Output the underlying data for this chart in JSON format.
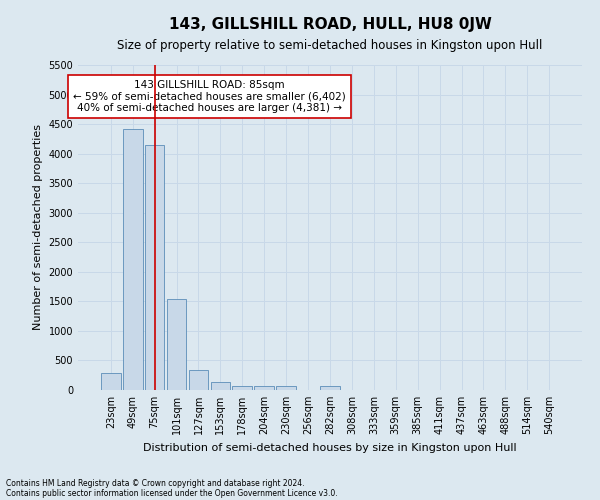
{
  "title": "143, GILLSHILL ROAD, HULL, HU8 0JW",
  "subtitle": "Size of property relative to semi-detached houses in Kingston upon Hull",
  "xlabel": "Distribution of semi-detached houses by size in Kingston upon Hull",
  "ylabel": "Number of semi-detached properties",
  "footnote1": "Contains HM Land Registry data © Crown copyright and database right 2024.",
  "footnote2": "Contains public sector information licensed under the Open Government Licence v3.0.",
  "categories": [
    "23sqm",
    "49sqm",
    "75sqm",
    "101sqm",
    "127sqm",
    "153sqm",
    "178sqm",
    "204sqm",
    "230sqm",
    "256sqm",
    "282sqm",
    "308sqm",
    "333sqm",
    "359sqm",
    "385sqm",
    "411sqm",
    "437sqm",
    "463sqm",
    "488sqm",
    "514sqm",
    "540sqm"
  ],
  "values": [
    290,
    4420,
    4150,
    1540,
    340,
    130,
    70,
    65,
    65,
    0,
    70,
    0,
    0,
    0,
    0,
    0,
    0,
    0,
    0,
    0,
    0
  ],
  "bar_color": "#c8d8e8",
  "bar_edge_color": "#5b8db8",
  "vline_x_index": 2,
  "vline_color": "#cc0000",
  "annotation_text": "143 GILLSHILL ROAD: 85sqm\n← 59% of semi-detached houses are smaller (6,402)\n40% of semi-detached houses are larger (4,381) →",
  "annotation_box_color": "#ffffff",
  "annotation_box_edge": "#cc0000",
  "ylim": [
    0,
    5500
  ],
  "yticks": [
    0,
    500,
    1000,
    1500,
    2000,
    2500,
    3000,
    3500,
    4000,
    4500,
    5000,
    5500
  ],
  "grid_color": "#c8d8e8",
  "bg_color": "#dce8f0",
  "title_fontsize": 11,
  "subtitle_fontsize": 8.5,
  "xlabel_fontsize": 8,
  "ylabel_fontsize": 8,
  "tick_fontsize": 7,
  "annotation_fontsize": 7.5,
  "footnote_fontsize": 5.5
}
